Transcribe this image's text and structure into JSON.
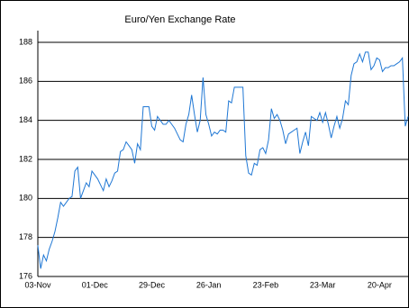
{
  "chart_data": {
    "type": "line",
    "title": "Euro/Yen Exchange Rate",
    "categories": [
      "03-Nov",
      null,
      null,
      null,
      null,
      null,
      null,
      null,
      null,
      null,
      null,
      null,
      null,
      null,
      null,
      null,
      null,
      null,
      null,
      null,
      "01-Dec",
      null,
      null,
      null,
      null,
      null,
      null,
      null,
      null,
      null,
      null,
      null,
      null,
      null,
      null,
      null,
      null,
      null,
      null,
      null,
      "29-Dec",
      null,
      null,
      null,
      null,
      null,
      null,
      null,
      null,
      null,
      null,
      null,
      null,
      null,
      null,
      null,
      null,
      null,
      null,
      null,
      "26-Jan",
      null,
      null,
      null,
      null,
      null,
      null,
      null,
      null,
      null,
      null,
      null,
      null,
      null,
      null,
      null,
      null,
      null,
      null,
      null,
      "23-Feb",
      null,
      null,
      null,
      null,
      null,
      null,
      null,
      null,
      null,
      null,
      null,
      null,
      null,
      null,
      null,
      null,
      null,
      null,
      null,
      "23-Mar",
      null,
      null,
      null,
      null,
      null,
      null,
      null,
      null,
      null,
      null,
      null,
      null,
      null,
      null,
      null,
      null,
      null,
      null,
      null,
      "20-Apr",
      null,
      null,
      null,
      null,
      null,
      null,
      null,
      null,
      null,
      null
    ],
    "values": [
      177.6,
      176.4,
      177.1,
      176.8,
      177.4,
      177.8,
      178.3,
      179.0,
      179.8,
      179.6,
      179.8,
      180.0,
      180.1,
      181.4,
      181.6,
      180.0,
      180.4,
      180.8,
      180.6,
      181.4,
      181.2,
      181.0,
      180.7,
      180.4,
      181.0,
      180.6,
      180.9,
      181.3,
      181.4,
      182.4,
      182.5,
      182.9,
      182.7,
      182.5,
      181.8,
      182.8,
      182.5,
      184.7,
      184.7,
      184.7,
      183.7,
      183.5,
      184.2,
      184.0,
      183.8,
      183.8,
      184.0,
      183.8,
      183.6,
      183.3,
      183.0,
      182.9,
      183.8,
      184.3,
      185.3,
      184.3,
      183.4,
      184.0,
      186.2,
      184.3,
      183.8,
      183.2,
      183.4,
      183.3,
      183.5,
      183.5,
      183.4,
      185.0,
      184.9,
      185.7,
      185.7,
      185.7,
      185.7,
      182.2,
      181.3,
      181.2,
      181.8,
      181.7,
      182.5,
      182.6,
      182.3,
      183.0,
      184.6,
      184.1,
      184.3,
      184.0,
      183.5,
      182.8,
      183.3,
      183.4,
      183.5,
      183.6,
      182.3,
      182.9,
      183.4,
      182.7,
      184.2,
      184.1,
      184.0,
      184.4,
      183.9,
      184.4,
      183.8,
      183.1,
      183.7,
      184.2,
      183.6,
      184.1,
      185.0,
      184.8,
      186.3,
      186.9,
      187.0,
      187.4,
      187.0,
      187.5,
      187.5,
      186.6,
      186.8,
      187.2,
      187.1,
      186.5,
      186.7,
      186.7,
      186.8,
      186.8,
      186.9,
      187.0,
      187.2,
      183.7,
      184.2
    ],
    "color": "#1f77d4",
    "ylim": [
      176,
      188
    ],
    "yticks": [
      176,
      178,
      180,
      182,
      184,
      186,
      188
    ],
    "grid": true
  }
}
